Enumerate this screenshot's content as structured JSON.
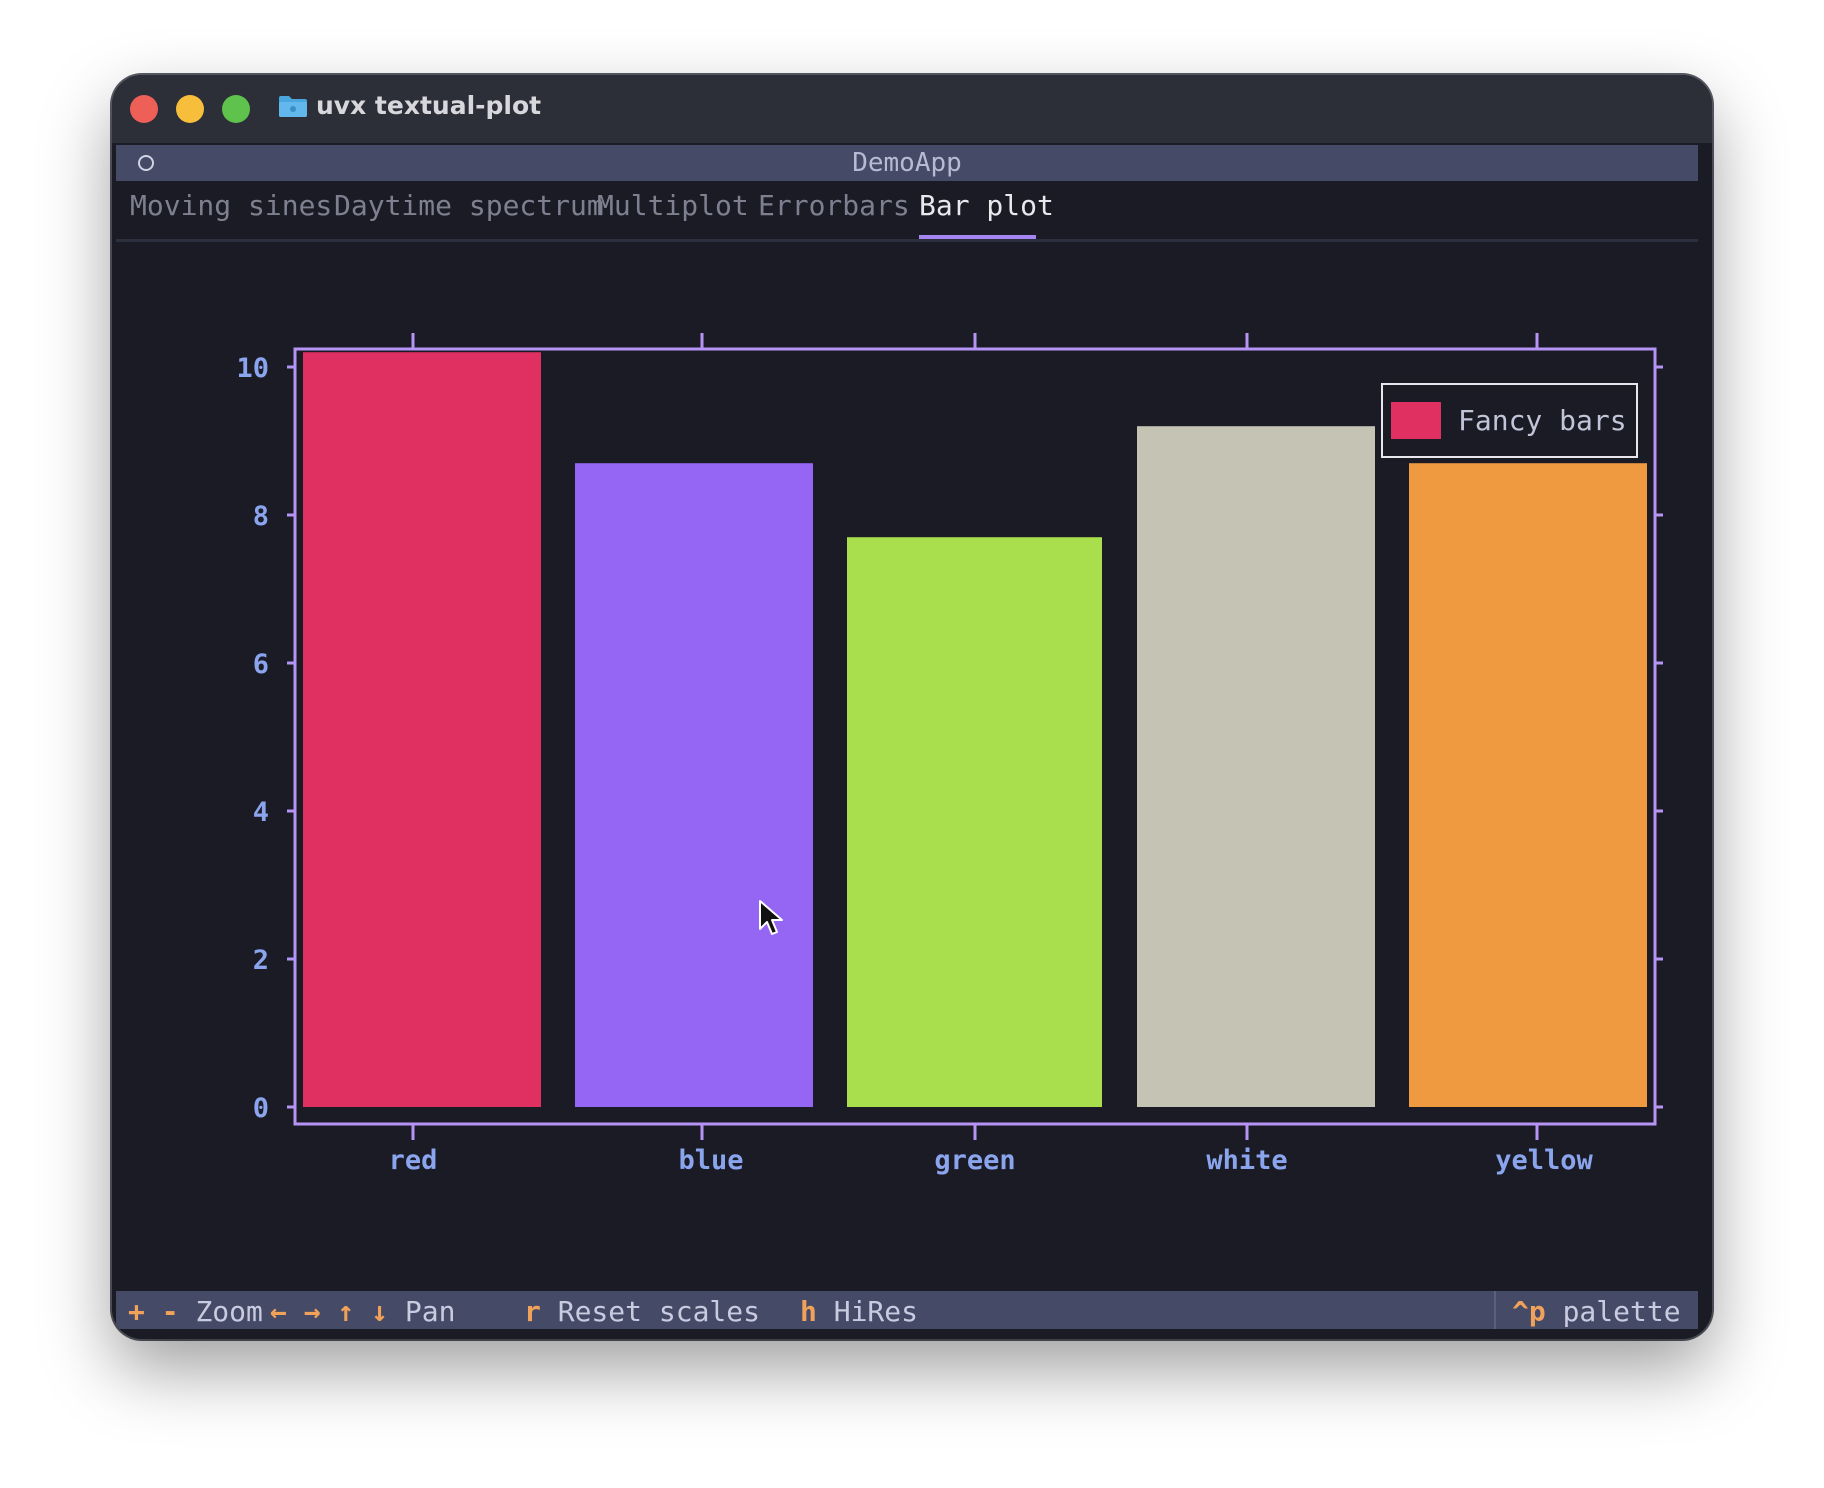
{
  "window": {
    "title": "uvx textual-plot"
  },
  "app": {
    "title": "DemoApp"
  },
  "tabs": [
    {
      "label": "Moving sines",
      "active": false
    },
    {
      "label": "Daytime spectrum",
      "active": false
    },
    {
      "label": "Multiplot",
      "active": false
    },
    {
      "label": "Errorbars",
      "active": false
    },
    {
      "label": "Bar plot",
      "active": true
    }
  ],
  "footer": {
    "zoom": {
      "key": "+ -",
      "label": "Zoom"
    },
    "pan": {
      "key": "← → ↑ ↓",
      "label": "Pan"
    },
    "reset": {
      "key": "r",
      "label": "Reset scales"
    },
    "hires": {
      "key": "h",
      "label": "HiRes"
    },
    "palette": {
      "key": "^p",
      "label": "palette"
    }
  },
  "icons": {
    "folder": "folder-icon",
    "cursor": "mouse-pointer-icon"
  },
  "colors": {
    "accent": "#a585f0",
    "axis": "#b594f5",
    "tick_label": "#8aa4ee",
    "key": "#f0a25a",
    "background": "#1b1b25"
  },
  "chart_data": {
    "type": "bar",
    "categories": [
      "red",
      "blue",
      "green",
      "white",
      "yellow"
    ],
    "values": [
      10.2,
      8.7,
      7.7,
      9.2,
      8.7
    ],
    "bar_colors": [
      "#e02f61",
      "#9566f4",
      "#a9de4c",
      "#c5c4b4",
      "#ef9a40"
    ],
    "series": [
      {
        "name": "Fancy bars",
        "values": [
          10.2,
          8.7,
          7.7,
          9.2,
          8.7
        ]
      }
    ],
    "ylim": [
      0,
      10.5
    ],
    "yticks": [
      0,
      2,
      4,
      6,
      8,
      10
    ],
    "legend": "top-right",
    "grid": false
  }
}
